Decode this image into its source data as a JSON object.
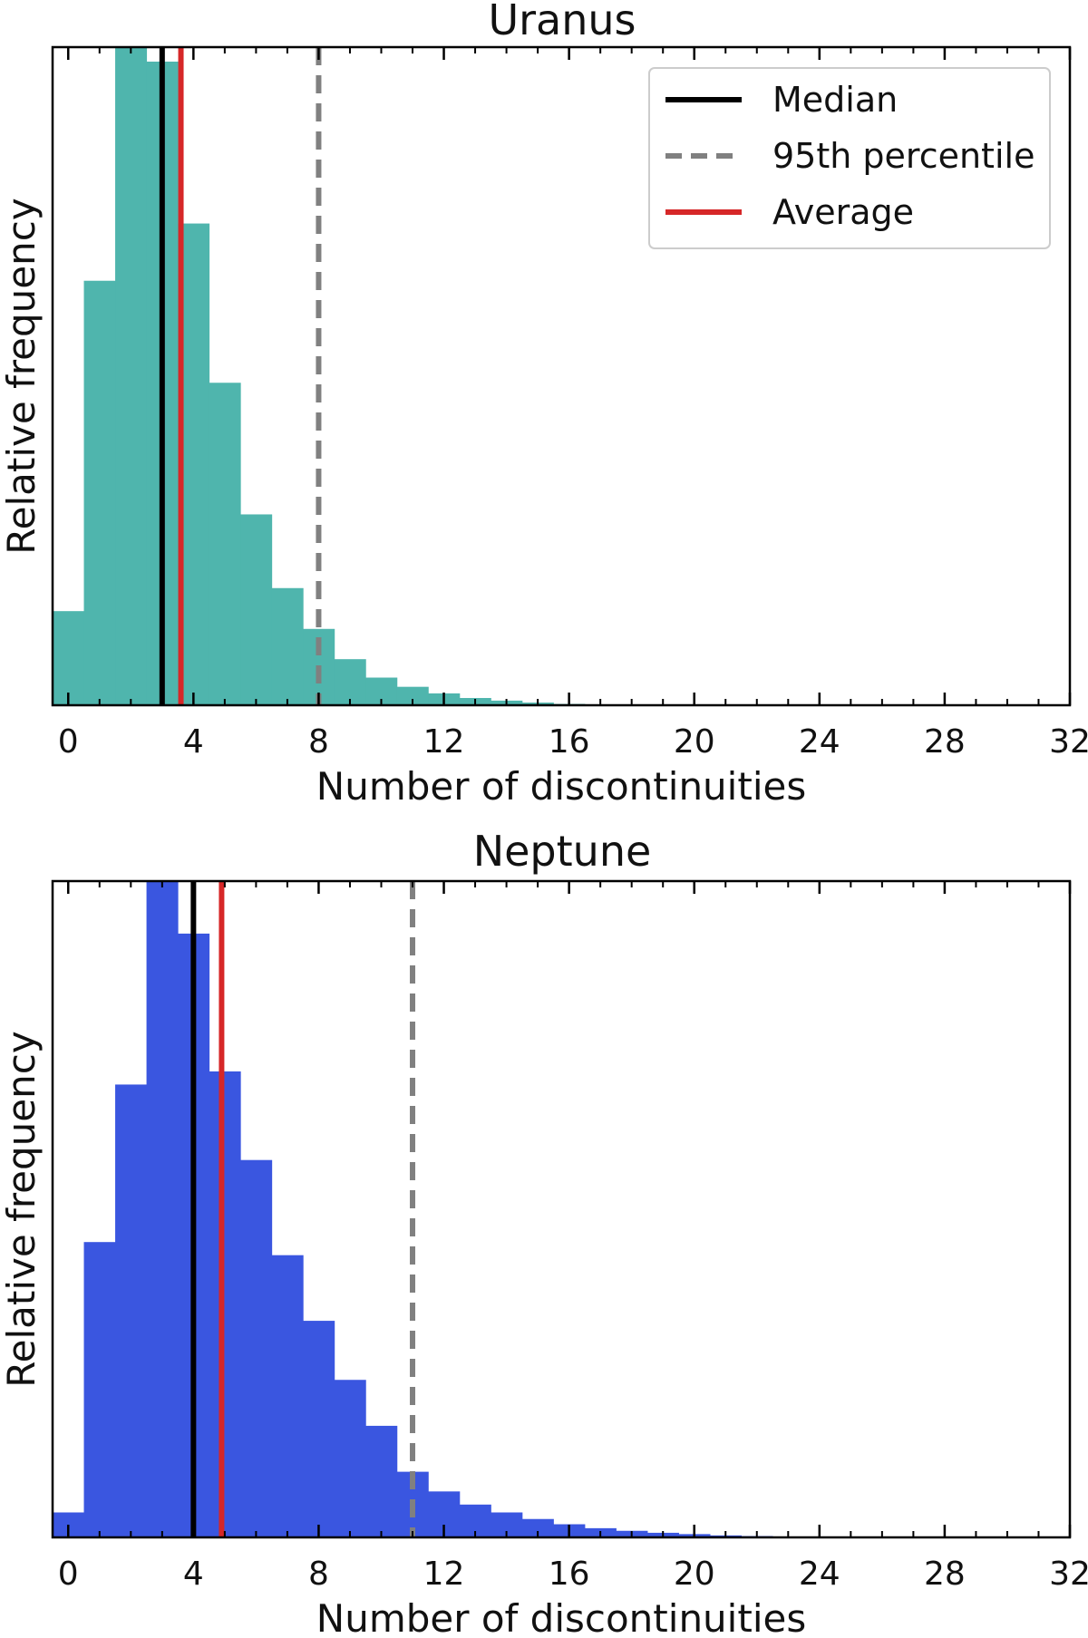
{
  "chart_data": [
    {
      "type": "bar",
      "title": "Uranus",
      "xlabel": "Number of discontinuities",
      "ylabel": "Relative frequency",
      "xlim": [
        -0.5,
        32
      ],
      "xticks": [
        0,
        4,
        8,
        12,
        16,
        20,
        24,
        28,
        32
      ],
      "ylim": [
        0,
        1.0
      ],
      "color": "#4fb5ad",
      "bins": [
        0,
        1,
        2,
        3,
        4,
        5,
        6,
        7,
        8,
        9,
        10,
        11,
        12,
        13,
        14,
        15,
        16,
        17,
        18
      ],
      "values": [
        0.143,
        0.645,
        1.0,
        0.978,
        0.732,
        0.49,
        0.29,
        0.178,
        0.116,
        0.07,
        0.042,
        0.028,
        0.018,
        0.011,
        0.007,
        0.004,
        0.002,
        0.001,
        0.0005
      ],
      "median": 3,
      "percentile95": 8,
      "average": 3.6,
      "grid": false
    },
    {
      "type": "bar",
      "title": "Neptune",
      "xlabel": "Number of discontinuities",
      "ylabel": "Relative frequency",
      "xlim": [
        -0.5,
        32
      ],
      "xticks": [
        0,
        4,
        8,
        12,
        16,
        20,
        24,
        28,
        32
      ],
      "ylim": [
        0,
        1.0
      ],
      "color": "#3a56e0",
      "bins": [
        0,
        1,
        2,
        3,
        4,
        5,
        6,
        7,
        8,
        9,
        10,
        11,
        12,
        13,
        14,
        15,
        16,
        17,
        18,
        19,
        20,
        21,
        22
      ],
      "values": [
        0.038,
        0.45,
        0.69,
        1.0,
        0.92,
        0.71,
        0.575,
        0.43,
        0.33,
        0.24,
        0.17,
        0.1,
        0.07,
        0.05,
        0.038,
        0.028,
        0.02,
        0.014,
        0.01,
        0.007,
        0.005,
        0.003,
        0.002
      ],
      "median": 4,
      "percentile95": 11,
      "average": 4.9,
      "grid": false
    }
  ],
  "legend": {
    "placement": "top-right",
    "entries": [
      {
        "label": "Median",
        "color": "#000000",
        "style": "solid"
      },
      {
        "label": "95th percentile",
        "color": "#808080",
        "style": "dashed"
      },
      {
        "label": "Average",
        "color": "#d62728",
        "style": "solid"
      }
    ]
  }
}
